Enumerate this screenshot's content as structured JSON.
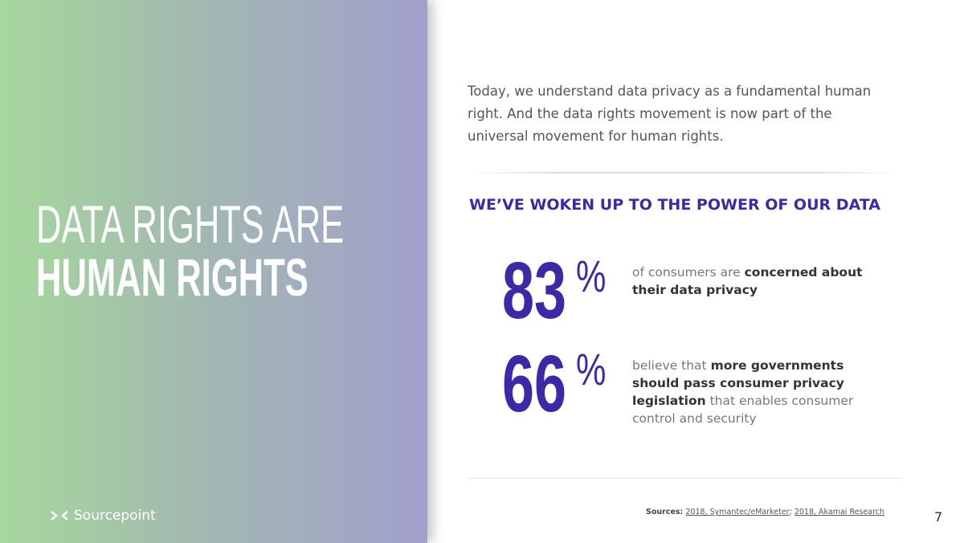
{
  "left": {
    "title_line1": "DATA RIGHTS ARE",
    "title_line2": "HUMAN RIGHTS",
    "logo": "Sourcepoint"
  },
  "intro": "Today, we understand data privacy as a fundamental human right. And the data rights movement is now part of the universal movement for human rights.",
  "heading": "WE’VE WOKEN UP TO THE POWER OF OUR DATA",
  "stats": [
    {
      "number": 83,
      "unit": "%",
      "text": [
        {
          "text": "of consumers are ",
          "bold": false
        },
        {
          "text": "concerned about their data privacy",
          "bold": true
        }
      ]
    },
    {
      "number": 66,
      "unit": "%",
      "text": [
        {
          "text": "believe that ",
          "bold": false
        },
        {
          "text": "more governments should pass consumer privacy legislation",
          "bold": true
        },
        {
          "text": " that enables consumer control and security",
          "bold": false
        }
      ]
    }
  ],
  "sources": {
    "label": "Sources:",
    "items": [
      "2018, Symantec/eMarketer",
      "2018, Akamai Research"
    ],
    "separator": "; "
  },
  "page_number": "7"
}
